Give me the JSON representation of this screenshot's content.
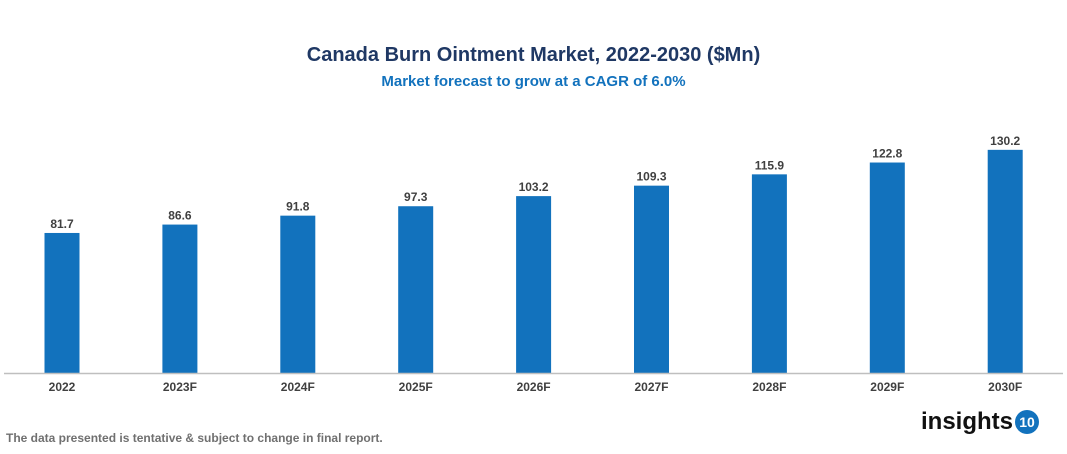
{
  "chart_data": {
    "type": "bar",
    "title": "Canada Burn Ointment Market, 2022-2030 ($Mn)",
    "subtitle": "Market forecast to grow at a CAGR of 6.0%",
    "categories": [
      "2022",
      "2023F",
      "2024F",
      "2025F",
      "2026F",
      "2027F",
      "2028F",
      "2029F",
      "2030F"
    ],
    "values": [
      81.7,
      86.6,
      91.8,
      97.3,
      103.2,
      109.3,
      115.9,
      122.8,
      130.2
    ],
    "xlabel": "",
    "ylabel": "",
    "ylim": [
      0,
      140
    ],
    "grid": false,
    "bar_color": "#1272bd"
  },
  "footer": {
    "note": "The data presented is tentative & subject to change in final report.",
    "logo_text": "insights",
    "logo_number": "10"
  }
}
